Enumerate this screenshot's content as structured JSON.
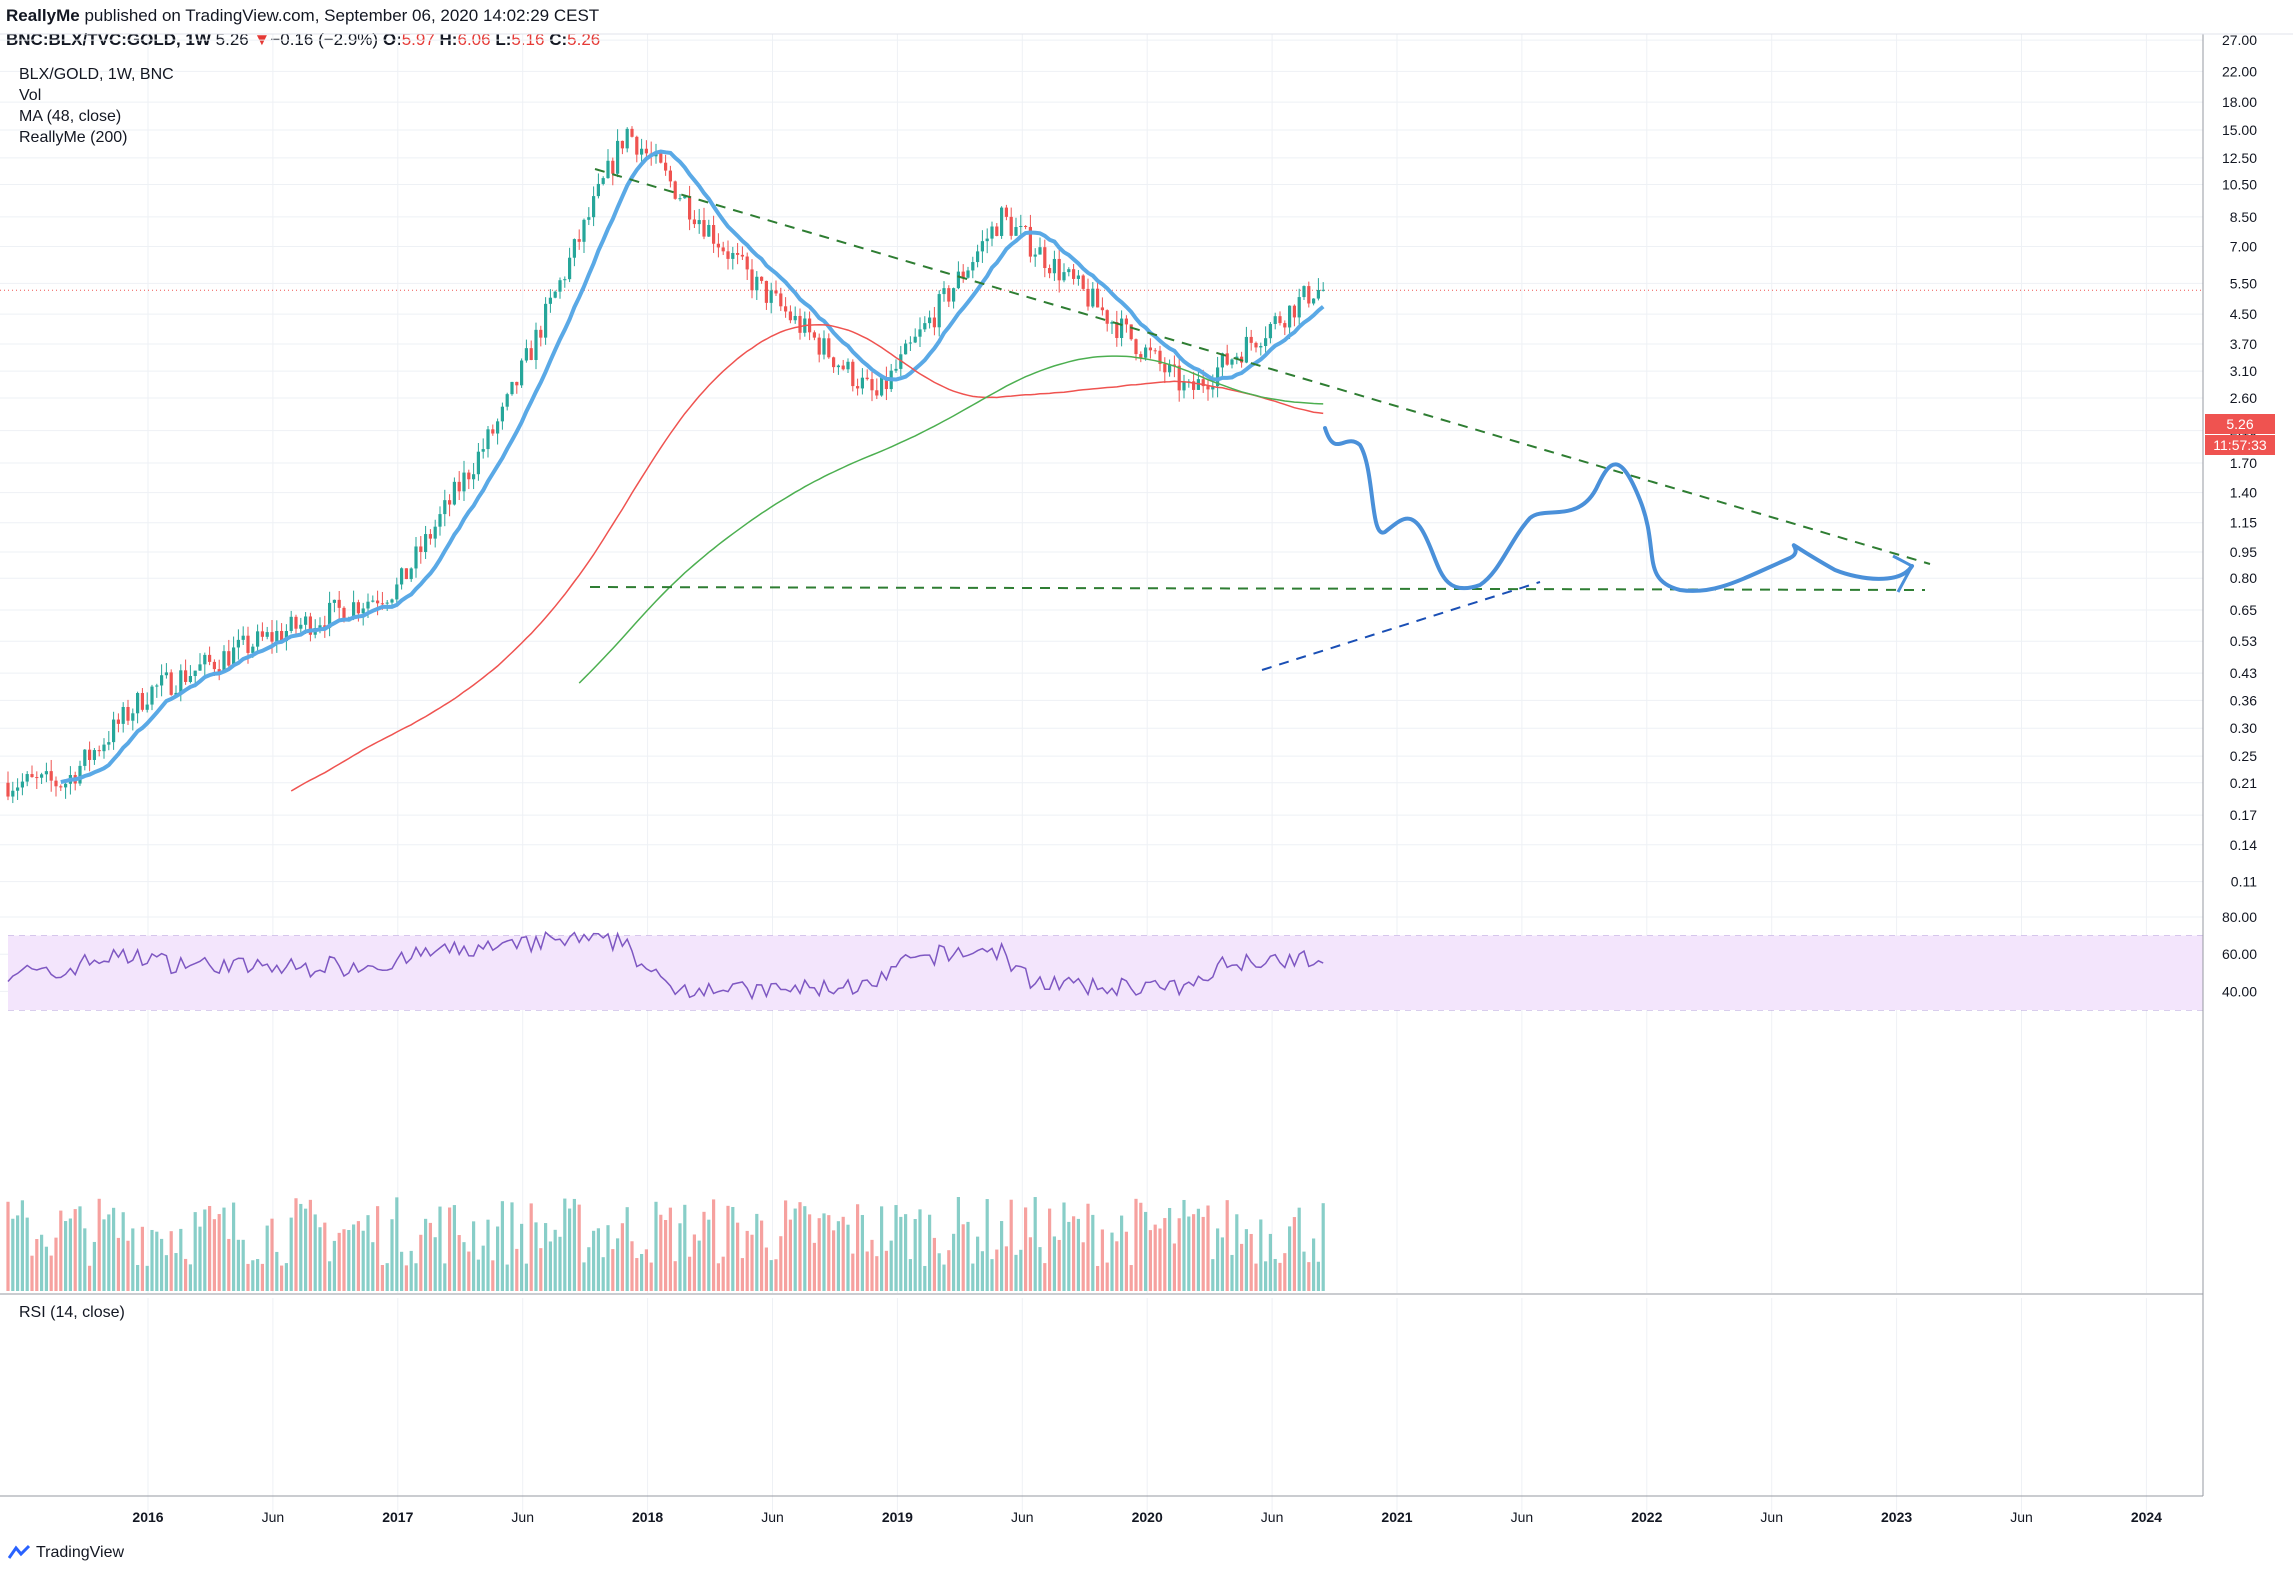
{
  "header": {
    "author": "ReallyMe",
    "published_text": "published on TradingView.com, September 06, 2020 14:02:29 CEST",
    "symbol": "BNC:BLX/TVC:GOLD, 1W",
    "last": "5.26",
    "change_arrow": "▼",
    "change": "−0.16 (−2.9%)",
    "o_label": "O:",
    "o_value": "5.97",
    "h_label": "H:",
    "h_value": "6.06",
    "l_label": "L:",
    "l_value": "5.16",
    "c_label": "C:",
    "c_value": "5.26"
  },
  "legend": {
    "main": "BLX/GOLD, 1W, BNC",
    "vol": "Vol",
    "ma": "MA (48, close)",
    "custom": "ReallyMe (200)"
  },
  "rsi_title": "RSI (14, close)",
  "price_badge": "5.26",
  "countdown_badge": "11:57:33",
  "brand": "TradingView",
  "colors": {
    "up": "#26a69a",
    "down": "#ef5350",
    "ma48": "#5aa9e6",
    "ma_red": "#ef5350",
    "ma_green": "#4caf50",
    "trend": "#2e7d32",
    "forecast": "#4a90d9",
    "rsi": "#7e57c2",
    "rsi_band": "#f3e5fc"
  },
  "chart_data": {
    "type": "candlestick",
    "price_axis_ticks": [
      "27.00",
      "22.00",
      "18.00",
      "15.00",
      "12.50",
      "10.50",
      "8.50",
      "7.00",
      "5.50",
      "4.50",
      "3.70",
      "3.10",
      "2.60",
      "2.10",
      "1.70",
      "1.40",
      "1.15",
      "0.95",
      "0.80",
      "0.65",
      "0.53",
      "0.43",
      "0.36",
      "0.30",
      "0.25",
      "0.21",
      "0.17",
      "0.14",
      "0.11"
    ],
    "time_axis_labels": [
      "2016",
      "Jun",
      "2017",
      "Jun",
      "2018",
      "Jun",
      "2019",
      "Jun",
      "2020",
      "Jun",
      "2021",
      "Jun",
      "2022",
      "Jun",
      "2023",
      "Jun",
      "2024"
    ],
    "rsi_ticks": [
      "80.00",
      "60.00",
      "40.00"
    ],
    "rsi_band": [
      30,
      70
    ],
    "log_scale": true,
    "key_points": [
      {
        "date": "2015-09",
        "close": 0.21
      },
      {
        "date": "2016-01",
        "close": 0.38
      },
      {
        "date": "2016-06",
        "close": 0.52
      },
      {
        "date": "2017-01",
        "close": 0.75
      },
      {
        "date": "2017-06",
        "close": 2.3
      },
      {
        "date": "2017-12",
        "close": 15.0
      },
      {
        "date": "2018-06",
        "close": 5.6
      },
      {
        "date": "2018-12",
        "close": 2.6
      },
      {
        "date": "2019-06",
        "close": 8.5
      },
      {
        "date": "2020-03",
        "close": 2.7
      },
      {
        "date": "2020-09",
        "close": 5.26
      }
    ]
  }
}
